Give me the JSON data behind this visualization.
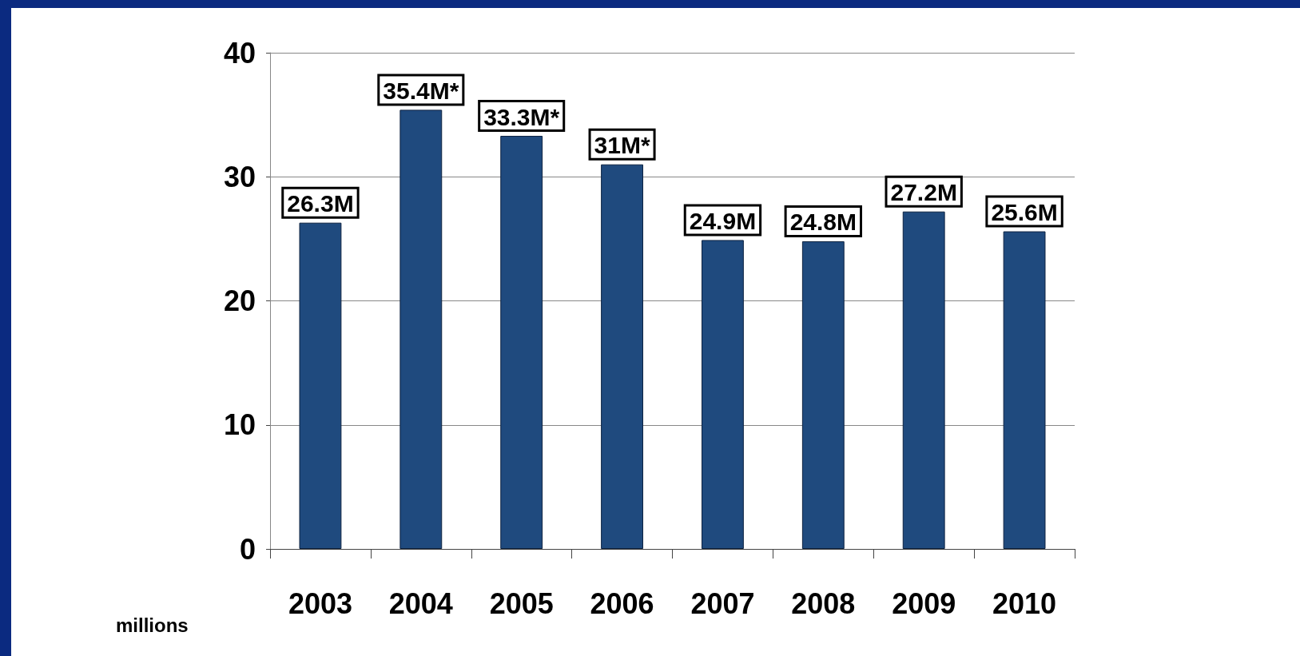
{
  "chart_data": {
    "type": "bar",
    "ylabel": "millions",
    "categories": [
      "2003",
      "2004",
      "2005",
      "2006",
      "2007",
      "2008",
      "2009",
      "2010"
    ],
    "values": [
      26.3,
      35.4,
      33.3,
      31,
      24.9,
      24.8,
      27.2,
      25.6
    ],
    "value_labels": [
      "26.3M",
      "35.4M*",
      "33.3M*",
      "31M*",
      "24.9M",
      "24.8M",
      "27.2M",
      "25.6M"
    ],
    "color": "#1f4a7e",
    "ylim": [
      0,
      40
    ],
    "yticks": [
      0,
      10,
      20,
      30,
      40
    ],
    "grid": "y"
  }
}
